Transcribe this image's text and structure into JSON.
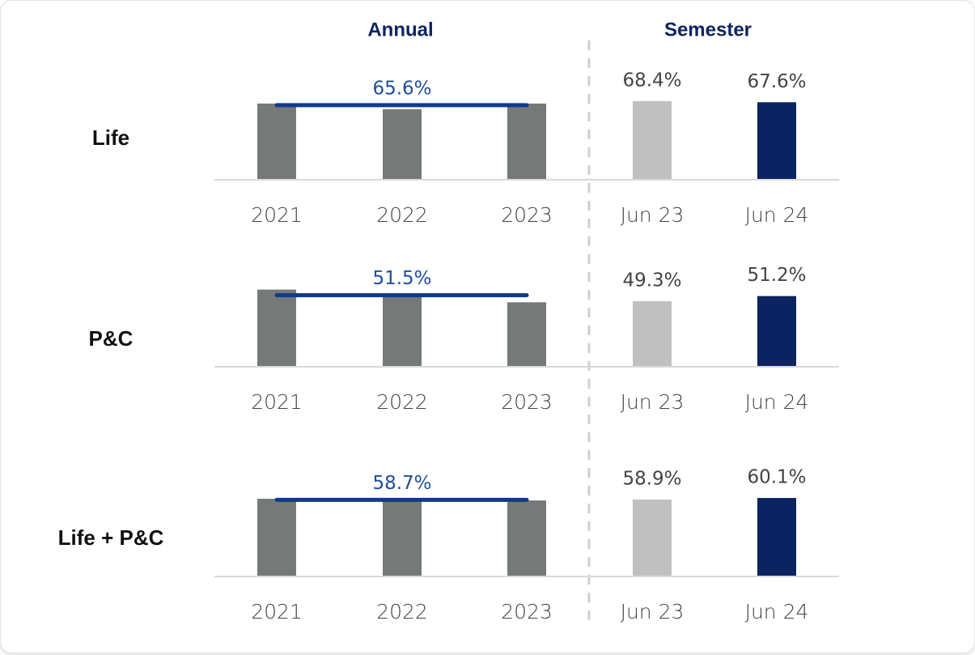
{
  "headers": [
    "Annual",
    "Semester"
  ],
  "chart_data": [
    {
      "type": "bar",
      "title": "Life",
      "categories": [
        "2021",
        "2022",
        "2023",
        "Jun 23",
        "Jun 24"
      ],
      "values": [
        66.7,
        62.8,
        66.7,
        68.4,
        67.6
      ],
      "value_labels": [
        null,
        null,
        null,
        "68.4%",
        "67.6%"
      ],
      "colors": [
        "#757a78",
        "#757a78",
        "#757a78",
        "#c0c0c0",
        "#0b2461"
      ],
      "average": {
        "value": 65.6,
        "label": "65.6%",
        "color": "#0f3a8c"
      },
      "ylim": [
        14,
        70
      ]
    },
    {
      "type": "bar",
      "title": "P&C",
      "categories": [
        "2021",
        "2022",
        "2023",
        "Jun 23",
        "Jun 24"
      ],
      "values": [
        53.6,
        51.4,
        48.9,
        49.3,
        51.2
      ],
      "value_labels": [
        null,
        null,
        null,
        "49.3%",
        "51.2%"
      ],
      "colors": [
        "#757a78",
        "#757a78",
        "#757a78",
        "#c0c0c0",
        "#0b2461"
      ],
      "average": {
        "value": 51.5,
        "label": "51.5%",
        "color": "#0f3a8c"
      },
      "ylim": [
        25,
        55
      ]
    },
    {
      "type": "bar",
      "title": "Life + P&C",
      "categories": [
        "2021",
        "2022",
        "2023",
        "Jun 23",
        "Jun 24"
      ],
      "values": [
        59.5,
        58.4,
        58.2,
        58.9,
        60.1
      ],
      "value_labels": [
        null,
        null,
        null,
        "58.9%",
        "60.1%"
      ],
      "colors": [
        "#757a78",
        "#757a78",
        "#757a78",
        "#c0c0c0",
        "#0b2461"
      ],
      "average": {
        "value": 58.7,
        "label": "58.7%",
        "color": "#0f3a8c"
      },
      "ylim": [
        0,
        62
      ]
    }
  ]
}
